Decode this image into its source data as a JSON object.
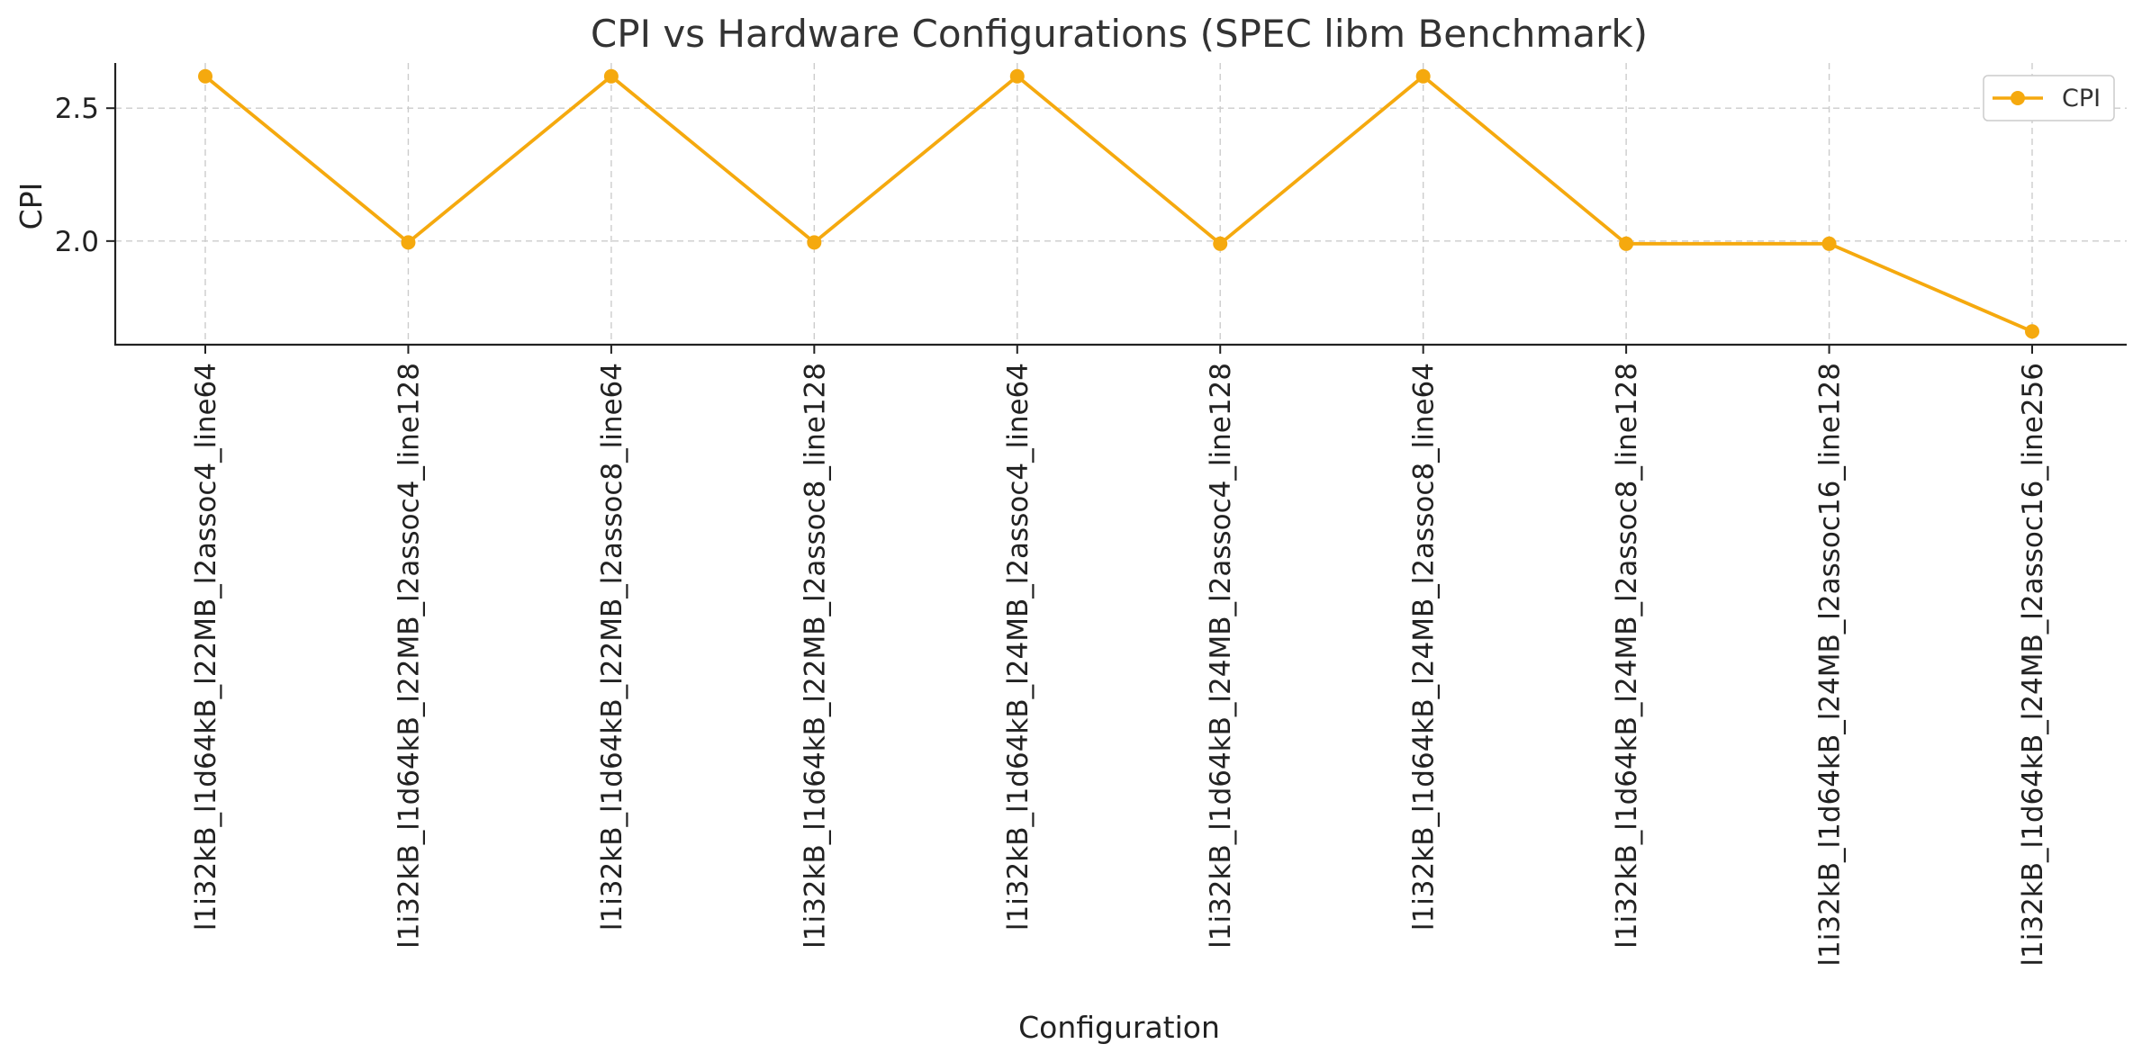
{
  "chart_data": {
    "type": "line",
    "title": "CPI vs Hardware Configurations (SPEC libm Benchmark)",
    "xlabel": "Configuration",
    "ylabel": "CPI",
    "categories": [
      "l1i32kB_l1d64kB_l22MB_l2assoc4_line64",
      "l1i32kB_l1d64kB_l22MB_l2assoc4_line128",
      "l1i32kB_l1d64kB_l22MB_l2assoc8_line64",
      "l1i32kB_l1d64kB_l22MB_l2assoc8_line128",
      "l1i32kB_l1d64kB_l24MB_l2assoc4_line64",
      "l1i32kB_l1d64kB_l24MB_l2assoc4_line128",
      "l1i32kB_l1d64kB_l24MB_l2assoc8_line64",
      "l1i32kB_l1d64kB_l24MB_l2assoc8_line128",
      "l1i32kB_l1d64kB_l24MB_l2assoc16_line128",
      "l1i32kB_l1d64kB_l24MB_l2assoc16_line256"
    ],
    "series": [
      {
        "name": "CPI",
        "color": "#F5A90E",
        "values": [
          2.62,
          1.995,
          2.62,
          1.995,
          2.62,
          1.99,
          2.62,
          1.99,
          1.99,
          1.66
        ]
      }
    ],
    "yticks": [
      2.0,
      2.5
    ],
    "ytick_labels": [
      "2.0",
      "2.5"
    ],
    "ylim": [
      1.61,
      2.67
    ],
    "grid": true,
    "legend": {
      "position": "top-right",
      "entries": [
        "CPI"
      ]
    }
  }
}
